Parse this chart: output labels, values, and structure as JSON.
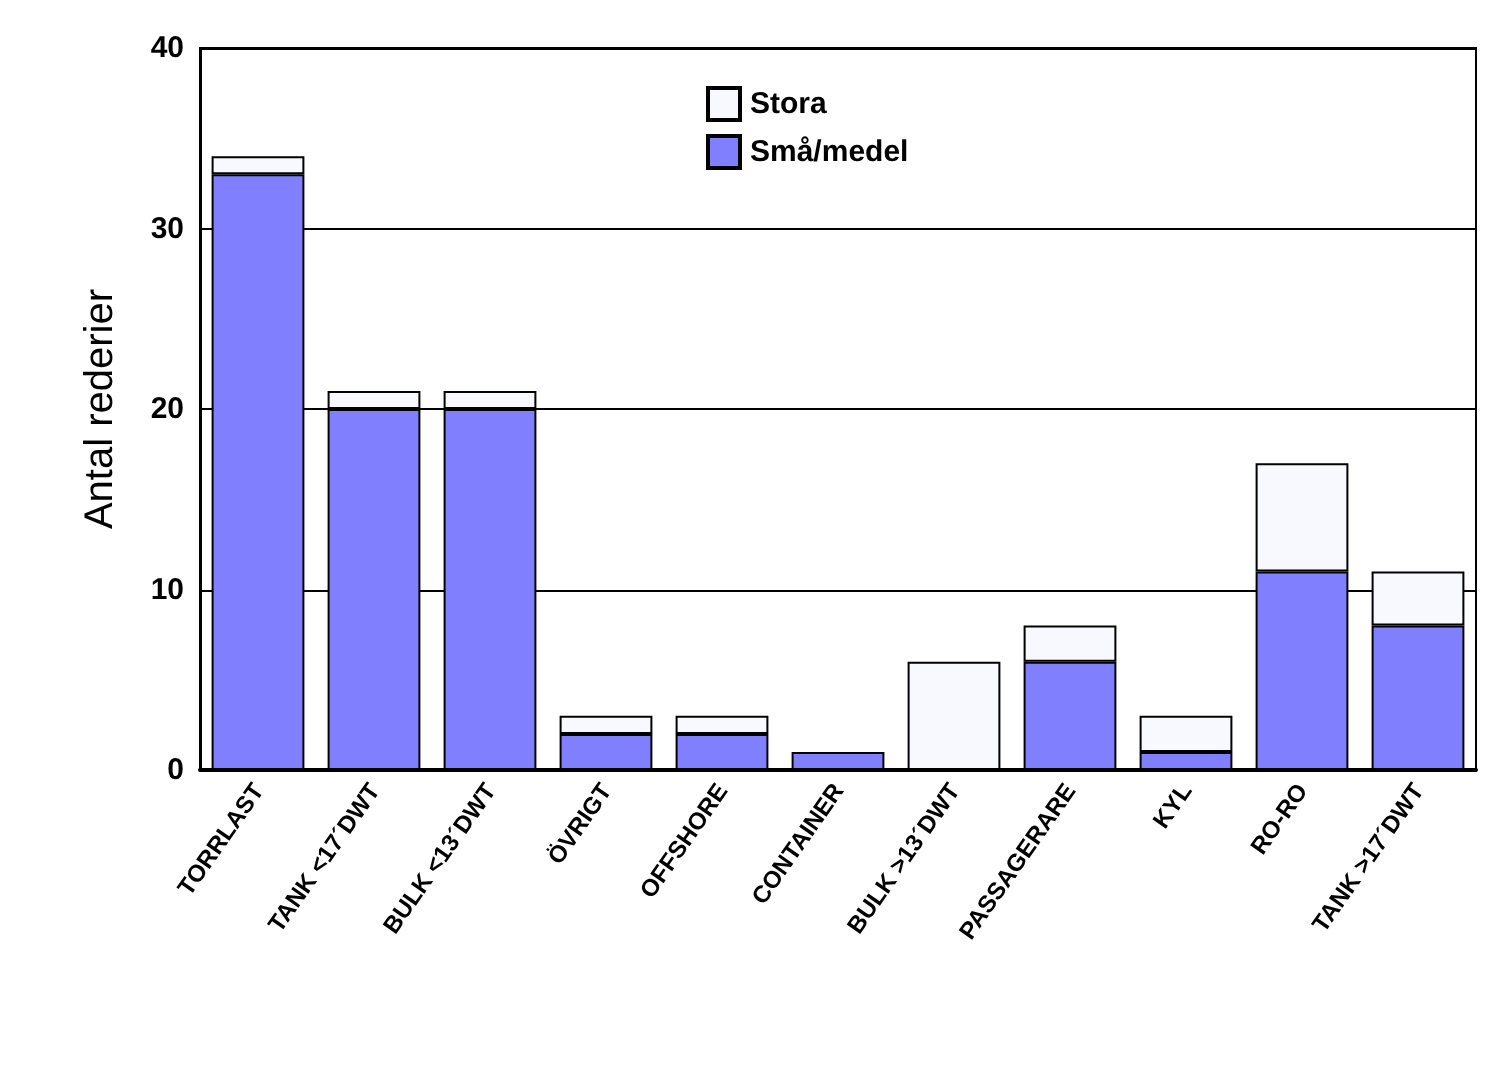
{
  "chart_data": {
    "type": "bar",
    "stacked": true,
    "ylabel": "Antal rederier",
    "categories": [
      "TORRLAST",
      "TANK <17´DWT",
      "BULK <13´DWT",
      "ÖVRIGT",
      "OFFSHORE",
      "CONTAINER",
      "BULK >13´DWT",
      "PASSAGERARE",
      "KYL",
      "RO-RO",
      "TANK >17´DWT"
    ],
    "series": [
      {
        "name": "Små/medel",
        "color": "#8080ff",
        "values": [
          33,
          20,
          20,
          2,
          2,
          1,
          0,
          6,
          1,
          11,
          8
        ]
      },
      {
        "name": "Stora",
        "color": "#f8f8ff",
        "values": [
          1,
          1,
          1,
          1,
          1,
          0,
          6,
          2,
          2,
          6,
          3
        ]
      }
    ],
    "ylim": [
      0,
      40
    ],
    "yticks": [
      0,
      10,
      20,
      30,
      40
    ],
    "grid": "y",
    "legend": "top"
  }
}
